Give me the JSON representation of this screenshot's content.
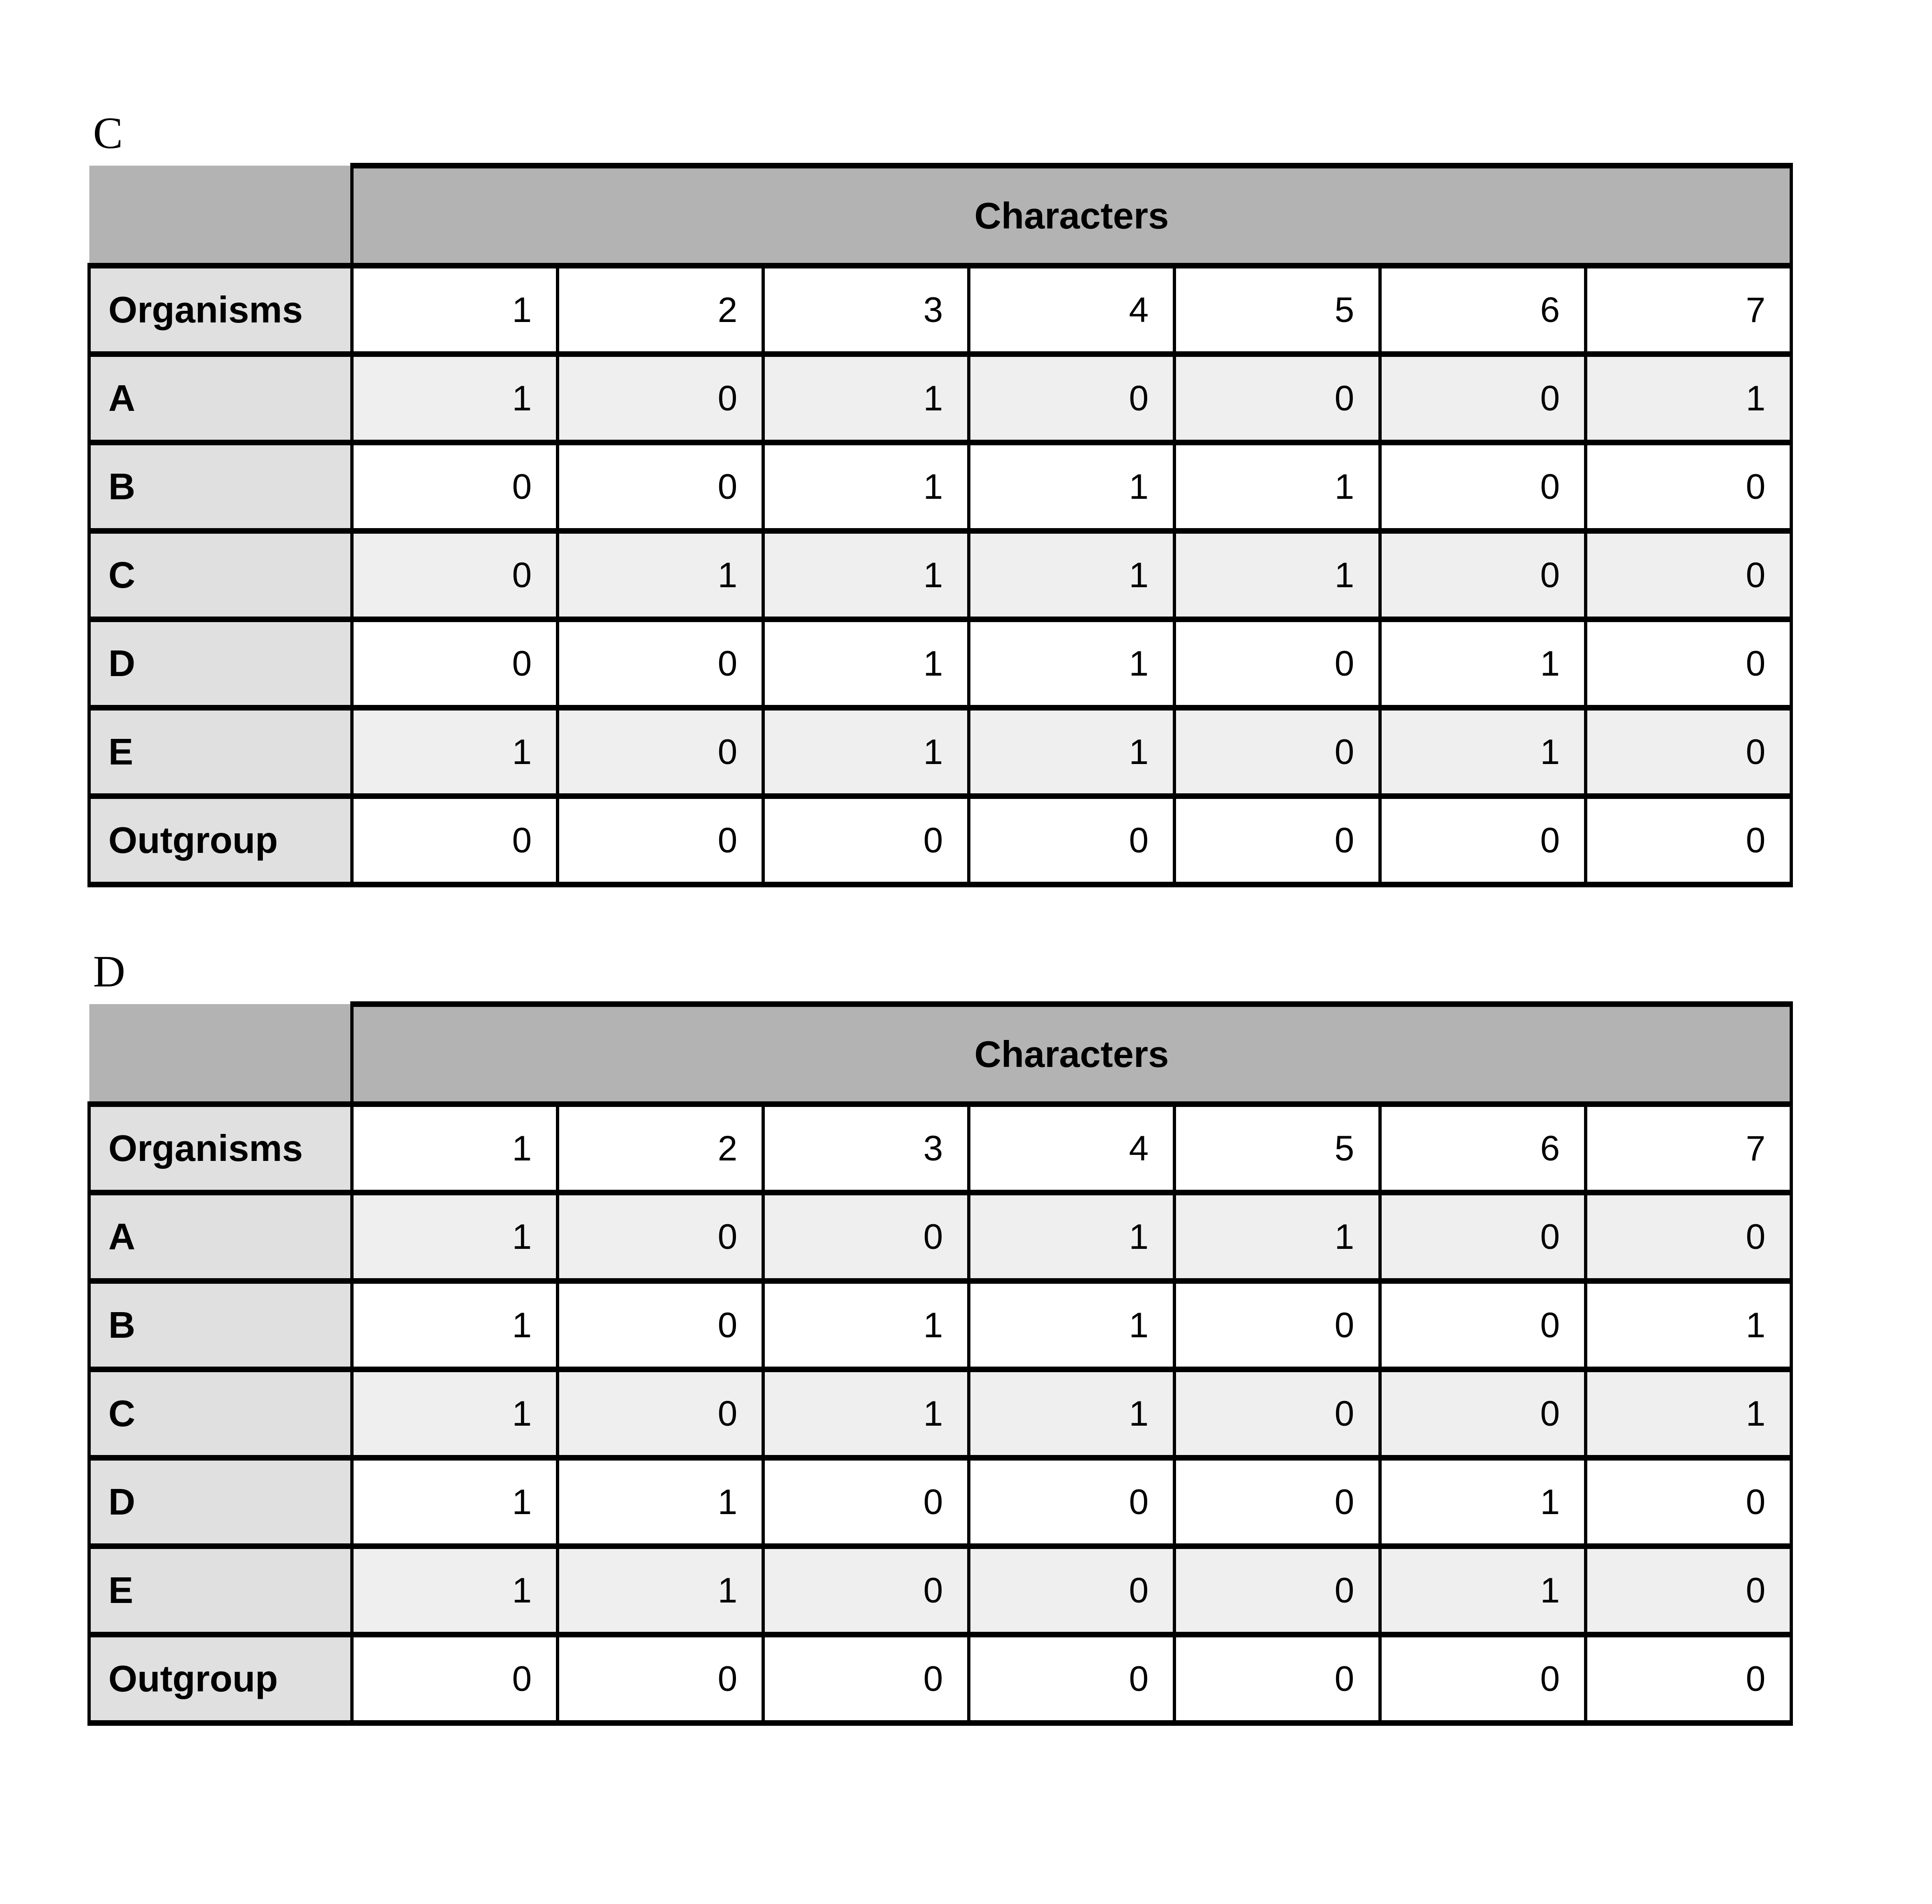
{
  "panels": [
    {
      "label": "C",
      "table": {
        "group_header": "Characters",
        "row_header": "Organisms",
        "column_headers": [
          "1",
          "2",
          "3",
          "4",
          "5",
          "6",
          "7"
        ],
        "rows": [
          {
            "label": "A",
            "values": [
              "1",
              "0",
              "1",
              "0",
              "0",
              "0",
              "1"
            ]
          },
          {
            "label": "B",
            "values": [
              "0",
              "0",
              "1",
              "1",
              "1",
              "0",
              "0"
            ]
          },
          {
            "label": "C",
            "values": [
              "0",
              "1",
              "1",
              "1",
              "1",
              "0",
              "0"
            ]
          },
          {
            "label": "D",
            "values": [
              "0",
              "0",
              "1",
              "1",
              "0",
              "1",
              "0"
            ]
          },
          {
            "label": "E",
            "values": [
              "1",
              "0",
              "1",
              "1",
              "0",
              "1",
              "0"
            ]
          },
          {
            "label": "Outgroup",
            "values": [
              "0",
              "0",
              "0",
              "0",
              "0",
              "0",
              "0"
            ]
          }
        ]
      }
    },
    {
      "label": "D",
      "table": {
        "group_header": "Characters",
        "row_header": "Organisms",
        "column_headers": [
          "1",
          "2",
          "3",
          "4",
          "5",
          "6",
          "7"
        ],
        "rows": [
          {
            "label": "A",
            "values": [
              "1",
              "0",
              "0",
              "1",
              "1",
              "0",
              "0"
            ]
          },
          {
            "label": "B",
            "values": [
              "1",
              "0",
              "1",
              "1",
              "0",
              "0",
              "1"
            ]
          },
          {
            "label": "C",
            "values": [
              "1",
              "0",
              "1",
              "1",
              "0",
              "0",
              "1"
            ]
          },
          {
            "label": "D",
            "values": [
              "1",
              "1",
              "0",
              "0",
              "0",
              "1",
              "0"
            ]
          },
          {
            "label": "E",
            "values": [
              "1",
              "1",
              "0",
              "0",
              "0",
              "1",
              "0"
            ]
          },
          {
            "label": "Outgroup",
            "values": [
              "0",
              "0",
              "0",
              "0",
              "0",
              "0",
              "0"
            ]
          }
        ]
      }
    }
  ],
  "colors": {
    "group_header_bg": "#b3b3b3",
    "row_label_bg": "#e0e0e0",
    "tint_row_bg": "#efefef",
    "plain_row_bg": "#ffffff",
    "border": "#000000",
    "text": "#000000"
  }
}
